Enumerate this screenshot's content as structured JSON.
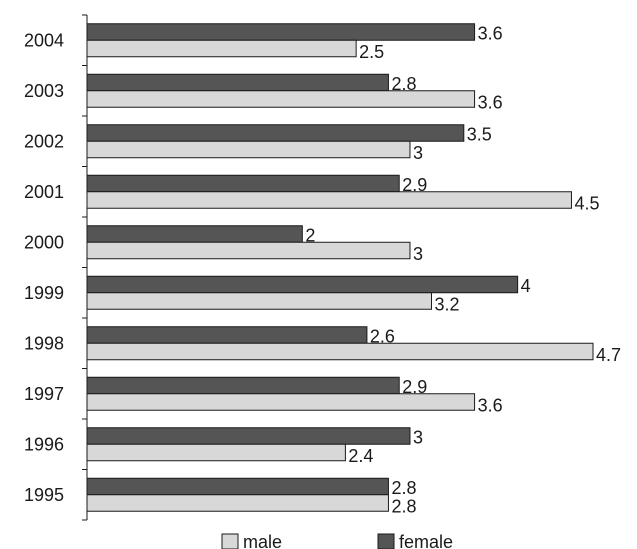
{
  "chart_data": {
    "type": "bar",
    "orientation": "horizontal",
    "categories": [
      "2004",
      "2003",
      "2002",
      "2001",
      "2000",
      "1999",
      "1998",
      "1997",
      "1996",
      "1995"
    ],
    "series": [
      {
        "name": "female",
        "color": "#555555",
        "values": [
          3.6,
          2.8,
          3.5,
          2.9,
          2,
          4,
          2.6,
          2.9,
          3,
          2.8
        ]
      },
      {
        "name": "male",
        "color": "#d8d8d8",
        "values": [
          2.5,
          3.6,
          3,
          4.5,
          3,
          3.2,
          4.7,
          3.6,
          2.4,
          2.8
        ]
      }
    ],
    "value_labels": {
      "female": [
        "3.6",
        "2.8",
        "3.5",
        "2.9",
        "2",
        "4",
        "2.6",
        "2.9",
        "3",
        "2.8"
      ],
      "male": [
        "2.5",
        "3.6",
        "3",
        "4.5",
        "3",
        "3.2",
        "4.7",
        "3.6",
        "2.4",
        "2.8"
      ]
    },
    "xlim": [
      0,
      4.7
    ],
    "grid": false,
    "legend": {
      "position": "bottom",
      "entries": [
        "male",
        "female"
      ]
    }
  }
}
